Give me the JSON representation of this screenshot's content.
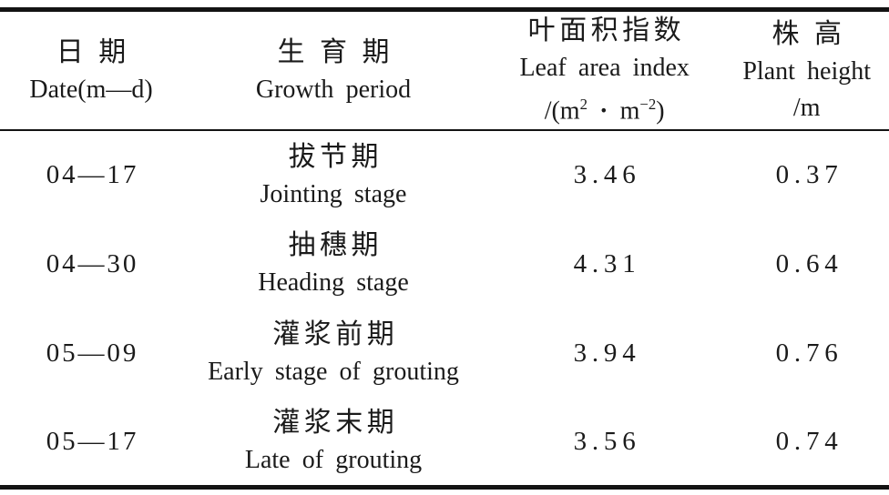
{
  "colors": {
    "background": "#ffffff",
    "text": "#1a1a1a",
    "rule": "#131313"
  },
  "table": {
    "columns": [
      {
        "title_cn": "日期",
        "title_en": "Date(m—d)"
      },
      {
        "title_cn": "生育期",
        "title_en": "Growth period"
      },
      {
        "title_cn": "叶面积指数",
        "title_en": "Leaf area index",
        "unit": {
          "p1": "/(m",
          "s1": "2",
          "dot": " · ",
          "p2": "m",
          "s2": "−2",
          "p3": ")"
        }
      },
      {
        "title_cn": "株高",
        "title_en": "Plant height",
        "unit_plain": "/m"
      }
    ],
    "rows": [
      {
        "date": "04—17",
        "period_cn": "拔节期",
        "period_en": "Jointing stage",
        "lai": "3.46",
        "height": "0.37"
      },
      {
        "date": "04—30",
        "period_cn": "抽穗期",
        "period_en": "Heading stage",
        "lai": "4.31",
        "height": "0.64"
      },
      {
        "date": "05—09",
        "period_cn": "灌浆前期",
        "period_en": "Early stage of grouting",
        "lai": "3.94",
        "height": "0.76"
      },
      {
        "date": "05—17",
        "period_cn": "灌浆末期",
        "period_en": "Late of grouting",
        "lai": "3.56",
        "height": "0.74"
      }
    ]
  }
}
